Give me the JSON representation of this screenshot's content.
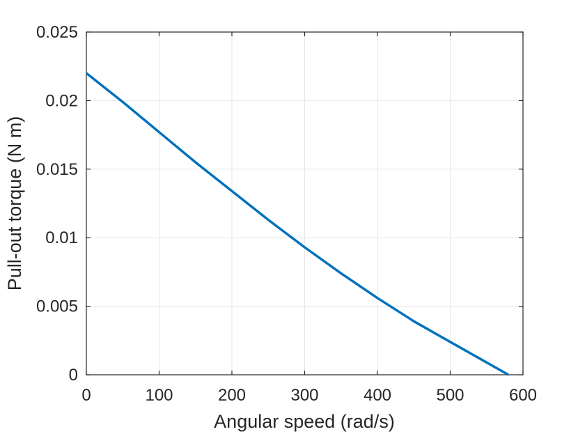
{
  "chart_data": {
    "type": "line",
    "title": "",
    "xlabel": "Angular speed (rad/s)",
    "ylabel": "Pull-out torque (N m)",
    "xlim": [
      0,
      600
    ],
    "ylim": [
      0,
      0.025
    ],
    "xticks": [
      0,
      100,
      200,
      300,
      400,
      500,
      600
    ],
    "xtick_labels": [
      "0",
      "100",
      "200",
      "300",
      "400",
      "500",
      "600"
    ],
    "yticks": [
      0,
      0.005,
      0.01,
      0.015,
      0.02,
      0.025
    ],
    "ytick_labels": [
      "0",
      "0.005",
      "0.01",
      "0.015",
      "0.02",
      "0.025"
    ],
    "grid": true,
    "series": [
      {
        "color": "#0072BD",
        "x": [
          0,
          50,
          100,
          150,
          200,
          250,
          300,
          350,
          400,
          450,
          500,
          550,
          580
        ],
        "y": [
          0.022,
          0.0199,
          0.0177,
          0.0155,
          0.0134,
          0.0113,
          0.0093,
          0.0074,
          0.0056,
          0.0039,
          0.0024,
          0.0009,
          0.0
        ]
      }
    ]
  }
}
